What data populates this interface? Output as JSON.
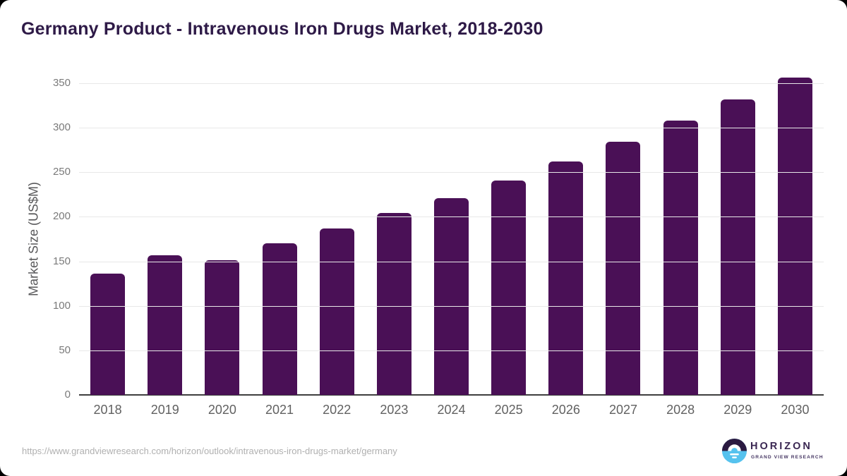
{
  "page": {
    "title": "Germany Product - Intravenous Iron Drugs Market, 2018-2030"
  },
  "chart_data": {
    "type": "bar",
    "title": "Germany Product - Intravenous Iron Drugs Market, 2018-2030",
    "categories": [
      "2018",
      "2019",
      "2020",
      "2021",
      "2022",
      "2023",
      "2024",
      "2025",
      "2026",
      "2027",
      "2028",
      "2029",
      "2030"
    ],
    "values": [
      136,
      157,
      151,
      170,
      187,
      204,
      221,
      241,
      262,
      284,
      308,
      332,
      356
    ],
    "xlabel": "",
    "ylabel": "Market Size (US$M)",
    "ylim": [
      0,
      350
    ],
    "yticks": [
      0,
      50,
      100,
      150,
      200,
      250,
      300,
      350
    ],
    "grid": "horizontal",
    "legend": "none",
    "bar_color": "#4a1056"
  },
  "footer": {
    "source_url": "https://www.grandviewresearch.com/horizon/outlook/intravenous-iron-drugs-market/germany",
    "logo_title": "HORIZON",
    "logo_subtitle": "GRAND VIEW RESEARCH"
  },
  "colors": {
    "title": "#2e1a47",
    "bar": "#4a1056",
    "gridline": "#e8e8e8",
    "axis_line": "#3f3f3f",
    "y_tick": "#7a7a7a",
    "x_tick": "#616161",
    "y_axis_title": "#58585a",
    "source_url": "#b0b0b0",
    "logo_purple": "#3a2752",
    "logo_blue": "#56c2ee"
  }
}
